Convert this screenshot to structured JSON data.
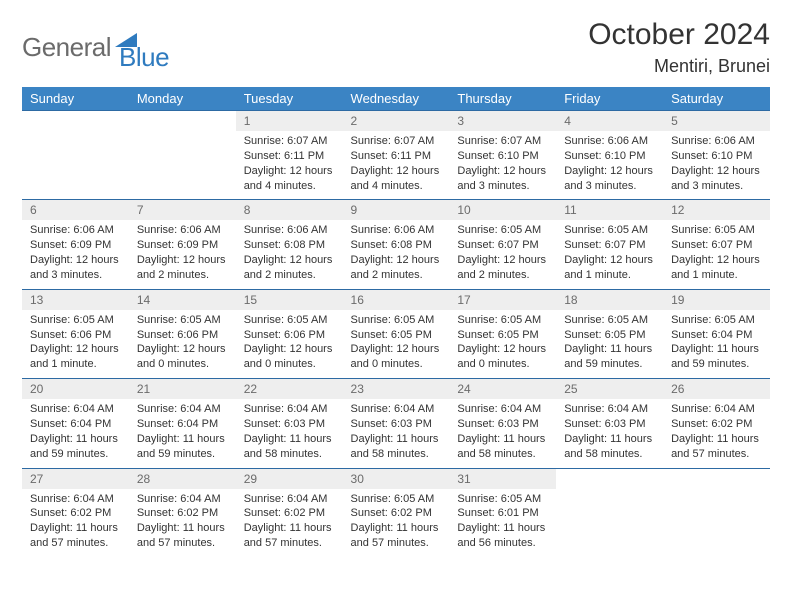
{
  "logo": {
    "text1": "General",
    "text2": "Blue"
  },
  "title": "October 2024",
  "location": "Mentiri, Brunei",
  "colors": {
    "header_bg": "#3b84c4",
    "header_text": "#ffffff",
    "daynum_bg": "#eeeeee",
    "daynum_text": "#6b6b6b",
    "cell_border": "#2d6aa3",
    "body_text": "#333333",
    "logo_gray": "#6b6b6b",
    "logo_blue": "#2f7bbf"
  },
  "day_headers": [
    "Sunday",
    "Monday",
    "Tuesday",
    "Wednesday",
    "Thursday",
    "Friday",
    "Saturday"
  ],
  "weeks": [
    [
      null,
      null,
      {
        "n": "1",
        "sr": "Sunrise: 6:07 AM",
        "ss": "Sunset: 6:11 PM",
        "dl": "Daylight: 12 hours and 4 minutes."
      },
      {
        "n": "2",
        "sr": "Sunrise: 6:07 AM",
        "ss": "Sunset: 6:11 PM",
        "dl": "Daylight: 12 hours and 4 minutes."
      },
      {
        "n": "3",
        "sr": "Sunrise: 6:07 AM",
        "ss": "Sunset: 6:10 PM",
        "dl": "Daylight: 12 hours and 3 minutes."
      },
      {
        "n": "4",
        "sr": "Sunrise: 6:06 AM",
        "ss": "Sunset: 6:10 PM",
        "dl": "Daylight: 12 hours and 3 minutes."
      },
      {
        "n": "5",
        "sr": "Sunrise: 6:06 AM",
        "ss": "Sunset: 6:10 PM",
        "dl": "Daylight: 12 hours and 3 minutes."
      }
    ],
    [
      {
        "n": "6",
        "sr": "Sunrise: 6:06 AM",
        "ss": "Sunset: 6:09 PM",
        "dl": "Daylight: 12 hours and 3 minutes."
      },
      {
        "n": "7",
        "sr": "Sunrise: 6:06 AM",
        "ss": "Sunset: 6:09 PM",
        "dl": "Daylight: 12 hours and 2 minutes."
      },
      {
        "n": "8",
        "sr": "Sunrise: 6:06 AM",
        "ss": "Sunset: 6:08 PM",
        "dl": "Daylight: 12 hours and 2 minutes."
      },
      {
        "n": "9",
        "sr": "Sunrise: 6:06 AM",
        "ss": "Sunset: 6:08 PM",
        "dl": "Daylight: 12 hours and 2 minutes."
      },
      {
        "n": "10",
        "sr": "Sunrise: 6:05 AM",
        "ss": "Sunset: 6:07 PM",
        "dl": "Daylight: 12 hours and 2 minutes."
      },
      {
        "n": "11",
        "sr": "Sunrise: 6:05 AM",
        "ss": "Sunset: 6:07 PM",
        "dl": "Daylight: 12 hours and 1 minute."
      },
      {
        "n": "12",
        "sr": "Sunrise: 6:05 AM",
        "ss": "Sunset: 6:07 PM",
        "dl": "Daylight: 12 hours and 1 minute."
      }
    ],
    [
      {
        "n": "13",
        "sr": "Sunrise: 6:05 AM",
        "ss": "Sunset: 6:06 PM",
        "dl": "Daylight: 12 hours and 1 minute."
      },
      {
        "n": "14",
        "sr": "Sunrise: 6:05 AM",
        "ss": "Sunset: 6:06 PM",
        "dl": "Daylight: 12 hours and 0 minutes."
      },
      {
        "n": "15",
        "sr": "Sunrise: 6:05 AM",
        "ss": "Sunset: 6:06 PM",
        "dl": "Daylight: 12 hours and 0 minutes."
      },
      {
        "n": "16",
        "sr": "Sunrise: 6:05 AM",
        "ss": "Sunset: 6:05 PM",
        "dl": "Daylight: 12 hours and 0 minutes."
      },
      {
        "n": "17",
        "sr": "Sunrise: 6:05 AM",
        "ss": "Sunset: 6:05 PM",
        "dl": "Daylight: 12 hours and 0 minutes."
      },
      {
        "n": "18",
        "sr": "Sunrise: 6:05 AM",
        "ss": "Sunset: 6:05 PM",
        "dl": "Daylight: 11 hours and 59 minutes."
      },
      {
        "n": "19",
        "sr": "Sunrise: 6:05 AM",
        "ss": "Sunset: 6:04 PM",
        "dl": "Daylight: 11 hours and 59 minutes."
      }
    ],
    [
      {
        "n": "20",
        "sr": "Sunrise: 6:04 AM",
        "ss": "Sunset: 6:04 PM",
        "dl": "Daylight: 11 hours and 59 minutes."
      },
      {
        "n": "21",
        "sr": "Sunrise: 6:04 AM",
        "ss": "Sunset: 6:04 PM",
        "dl": "Daylight: 11 hours and 59 minutes."
      },
      {
        "n": "22",
        "sr": "Sunrise: 6:04 AM",
        "ss": "Sunset: 6:03 PM",
        "dl": "Daylight: 11 hours and 58 minutes."
      },
      {
        "n": "23",
        "sr": "Sunrise: 6:04 AM",
        "ss": "Sunset: 6:03 PM",
        "dl": "Daylight: 11 hours and 58 minutes."
      },
      {
        "n": "24",
        "sr": "Sunrise: 6:04 AM",
        "ss": "Sunset: 6:03 PM",
        "dl": "Daylight: 11 hours and 58 minutes."
      },
      {
        "n": "25",
        "sr": "Sunrise: 6:04 AM",
        "ss": "Sunset: 6:03 PM",
        "dl": "Daylight: 11 hours and 58 minutes."
      },
      {
        "n": "26",
        "sr": "Sunrise: 6:04 AM",
        "ss": "Sunset: 6:02 PM",
        "dl": "Daylight: 11 hours and 57 minutes."
      }
    ],
    [
      {
        "n": "27",
        "sr": "Sunrise: 6:04 AM",
        "ss": "Sunset: 6:02 PM",
        "dl": "Daylight: 11 hours and 57 minutes."
      },
      {
        "n": "28",
        "sr": "Sunrise: 6:04 AM",
        "ss": "Sunset: 6:02 PM",
        "dl": "Daylight: 11 hours and 57 minutes."
      },
      {
        "n": "29",
        "sr": "Sunrise: 6:04 AM",
        "ss": "Sunset: 6:02 PM",
        "dl": "Daylight: 11 hours and 57 minutes."
      },
      {
        "n": "30",
        "sr": "Sunrise: 6:05 AM",
        "ss": "Sunset: 6:02 PM",
        "dl": "Daylight: 11 hours and 57 minutes."
      },
      {
        "n": "31",
        "sr": "Sunrise: 6:05 AM",
        "ss": "Sunset: 6:01 PM",
        "dl": "Daylight: 11 hours and 56 minutes."
      },
      null,
      null
    ]
  ]
}
